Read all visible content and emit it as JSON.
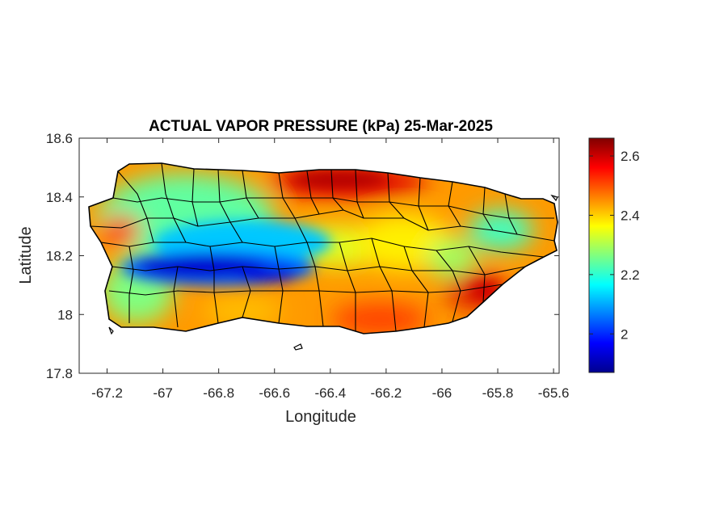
{
  "figure": {
    "title": "ACTUAL VAPOR PRESSURE (kPa) 25-Mar-2025",
    "xlabel": "Longitude",
    "ylabel": "Latitude"
  },
  "chart_data": {
    "type": "heatmap",
    "title": "ACTUAL VAPOR PRESSURE (kPa) 25-Mar-2025",
    "xlabel": "Longitude",
    "ylabel": "Latitude",
    "xlim": [
      -67.3,
      -65.58
    ],
    "ylim": [
      17.8,
      18.6
    ],
    "xticks": [
      -67.2,
      -67,
      -66.8,
      -66.6,
      -66.4,
      -66.2,
      -66,
      -65.8,
      -65.6
    ],
    "xtick_labels": [
      "-67.2",
      "-67",
      "-66.8",
      "-66.6",
      "-66.4",
      "-66.2",
      "-66",
      "-65.8",
      "-65.6"
    ],
    "yticks": [
      17.8,
      18,
      18.2,
      18.4,
      18.6
    ],
    "ytick_labels": [
      "17.8",
      "18",
      "18.2",
      "18.4",
      "18.6"
    ],
    "colorbar": {
      "colormap": "jet",
      "limits": [
        1.87,
        2.66
      ],
      "ticks": [
        2,
        2.2,
        2.4,
        2.6
      ],
      "tick_labels": [
        "2",
        "2.2",
        "2.4",
        "2.6"
      ],
      "units": "kPa"
    },
    "region": "Puerto Rico (municipality boundaries)",
    "field_summary": [
      {
        "area": "central Cordillera band (lon -67.0 to -66.5, lat ~18.15)",
        "value": 1.95
      },
      {
        "area": "western interior",
        "value": 2.25
      },
      {
        "area": "north-central coast (lon ~-66.4)",
        "value": 2.6
      },
      {
        "area": "north coast east of San Juan",
        "value": 2.5
      },
      {
        "area": "south coast",
        "value": 2.5
      },
      {
        "area": "southeast interior (lon ~-65.9, lat ~18.07)",
        "value": 2.58
      },
      {
        "area": "west coast (lon ~-67.15, lat ~18.3)",
        "value": 2.55
      },
      {
        "area": "east interior (lon ~-65.95, lat ~18.25)",
        "value": 2.3
      }
    ],
    "grid": false
  }
}
